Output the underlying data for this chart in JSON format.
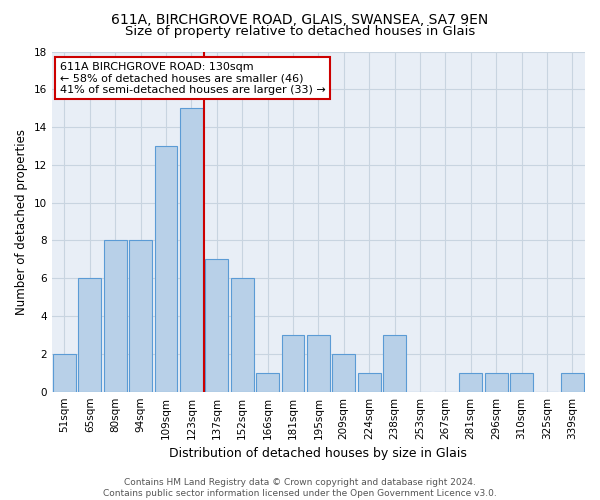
{
  "title_line1": "611A, BIRCHGROVE ROAD, GLAIS, SWANSEA, SA7 9EN",
  "title_line2": "Size of property relative to detached houses in Glais",
  "xlabel": "Distribution of detached houses by size in Glais",
  "ylabel": "Number of detached properties",
  "categories": [
    "51sqm",
    "65sqm",
    "80sqm",
    "94sqm",
    "109sqm",
    "123sqm",
    "137sqm",
    "152sqm",
    "166sqm",
    "181sqm",
    "195sqm",
    "209sqm",
    "224sqm",
    "238sqm",
    "253sqm",
    "267sqm",
    "281sqm",
    "296sqm",
    "310sqm",
    "325sqm",
    "339sqm"
  ],
  "values": [
    2,
    6,
    8,
    8,
    13,
    15,
    7,
    6,
    1,
    3,
    3,
    2,
    1,
    3,
    0,
    0,
    1,
    1,
    1,
    0,
    1
  ],
  "bar_color": "#b8d0e8",
  "bar_edgecolor": "#5b9bd5",
  "red_line_x": 5.5,
  "red_line_color": "#cc0000",
  "annotation_text": "611A BIRCHGROVE ROAD: 130sqm\n← 58% of detached houses are smaller (46)\n41% of semi-detached houses are larger (33) →",
  "annotation_box_facecolor": "#ffffff",
  "annotation_box_edgecolor": "#cc0000",
  "ylim": [
    0,
    18
  ],
  "yticks": [
    0,
    2,
    4,
    6,
    8,
    10,
    12,
    14,
    16,
    18
  ],
  "grid_color": "#c8d4e0",
  "background_color": "#e8eef6",
  "footer_text": "Contains HM Land Registry data © Crown copyright and database right 2024.\nContains public sector information licensed under the Open Government Licence v3.0.",
  "title_fontsize": 10,
  "subtitle_fontsize": 9.5,
  "tick_fontsize": 7.5,
  "ylabel_fontsize": 8.5,
  "xlabel_fontsize": 9,
  "annotation_fontsize": 8,
  "footer_fontsize": 6.5
}
